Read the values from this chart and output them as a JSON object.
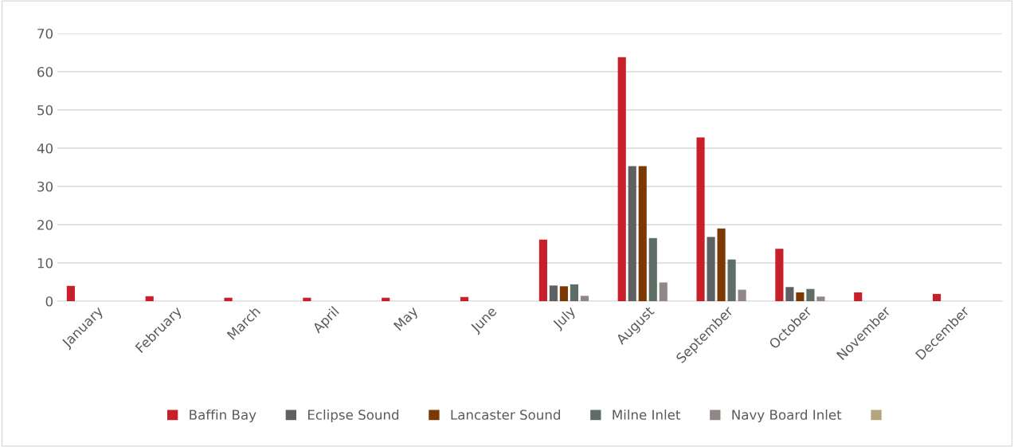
{
  "chart_data": {
    "type": "bar",
    "categories": [
      "January",
      "February",
      "March",
      "April",
      "May",
      "June",
      "July",
      "August",
      "September",
      "October",
      "November",
      "December"
    ],
    "series": [
      {
        "name": "Baffin Bay",
        "color": "#c8202a",
        "values": [
          4.0,
          1.3,
          0.9,
          0.9,
          0.9,
          1.1,
          16.1,
          63.8,
          42.8,
          13.7,
          2.3,
          1.9
        ]
      },
      {
        "name": "Eclipse Sound",
        "color": "#5f6062",
        "values": [
          null,
          null,
          null,
          null,
          null,
          null,
          4.1,
          35.3,
          16.8,
          3.7,
          null,
          null
        ]
      },
      {
        "name": "Lancaster Sound",
        "color": "#7b3800",
        "values": [
          null,
          null,
          null,
          null,
          null,
          null,
          3.9,
          35.3,
          19.0,
          2.3,
          null,
          null
        ]
      },
      {
        "name": "Milne Inlet",
        "color": "#5e6e67",
        "values": [
          null,
          null,
          null,
          null,
          null,
          null,
          4.4,
          16.5,
          10.9,
          3.2,
          null,
          null
        ]
      },
      {
        "name": "Navy Board Inlet",
        "color": "#928787",
        "values": [
          null,
          null,
          null,
          null,
          null,
          null,
          1.4,
          4.9,
          3.0,
          1.2,
          null,
          null
        ]
      },
      {
        "color": "#b3a67e",
        "values": [
          null,
          null,
          null,
          null,
          null,
          null,
          null,
          null,
          null,
          null,
          null,
          null
        ]
      }
    ],
    "ylim": [
      0,
      70
    ],
    "yticks": [
      0,
      10,
      20,
      30,
      40,
      50,
      60,
      70
    ],
    "grid": "y",
    "legend": "bottom"
  }
}
